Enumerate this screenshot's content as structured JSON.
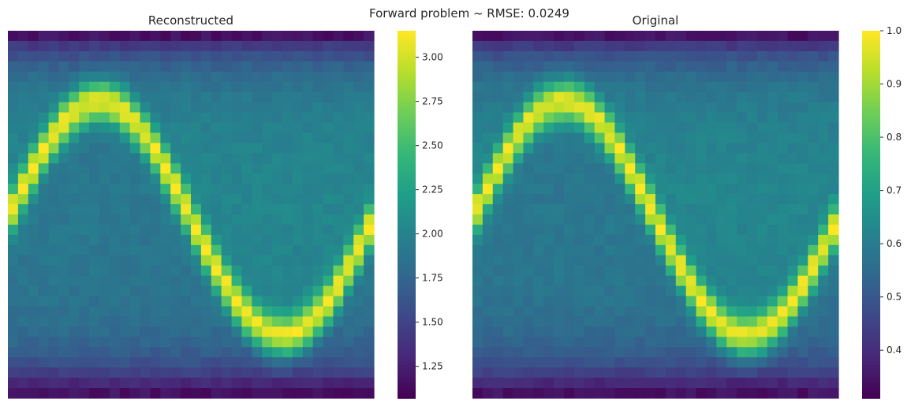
{
  "suptitle": "Forward problem ~ RMSE: 0.0249",
  "chart_data": [
    {
      "type": "heatmap",
      "title": "Reconstructed",
      "grid": {
        "rows": 36,
        "cols": 36
      },
      "pattern": {
        "shape": "sine",
        "periods": 1,
        "phase_cols": 0,
        "center_row": 18,
        "amplitude_rows": 11.5
      },
      "vrange": [
        1.07,
        3.15
      ],
      "colormap": "viridis",
      "colorbar": {
        "ticks": [
          1.25,
          1.5,
          1.75,
          2.0,
          2.25,
          2.5,
          2.75,
          3.0
        ],
        "tick_labels": [
          "1.25",
          "1.50",
          "1.75",
          "2.00",
          "2.25",
          "2.50",
          "2.75",
          "3.00"
        ]
      }
    },
    {
      "type": "heatmap",
      "title": "Original",
      "grid": {
        "rows": 36,
        "cols": 36
      },
      "pattern": {
        "shape": "sine",
        "periods": 1,
        "phase_cols": 0,
        "center_row": 18,
        "amplitude_rows": 11.5
      },
      "vrange": [
        0.31,
        1.0
      ],
      "colormap": "viridis",
      "colorbar": {
        "ticks": [
          0.4,
          0.5,
          0.6,
          0.7,
          0.8,
          0.9,
          1.0
        ],
        "tick_labels": [
          "0.4",
          "0.5",
          "0.6",
          "0.7",
          "0.8",
          "0.9",
          "1.0"
        ]
      }
    }
  ]
}
